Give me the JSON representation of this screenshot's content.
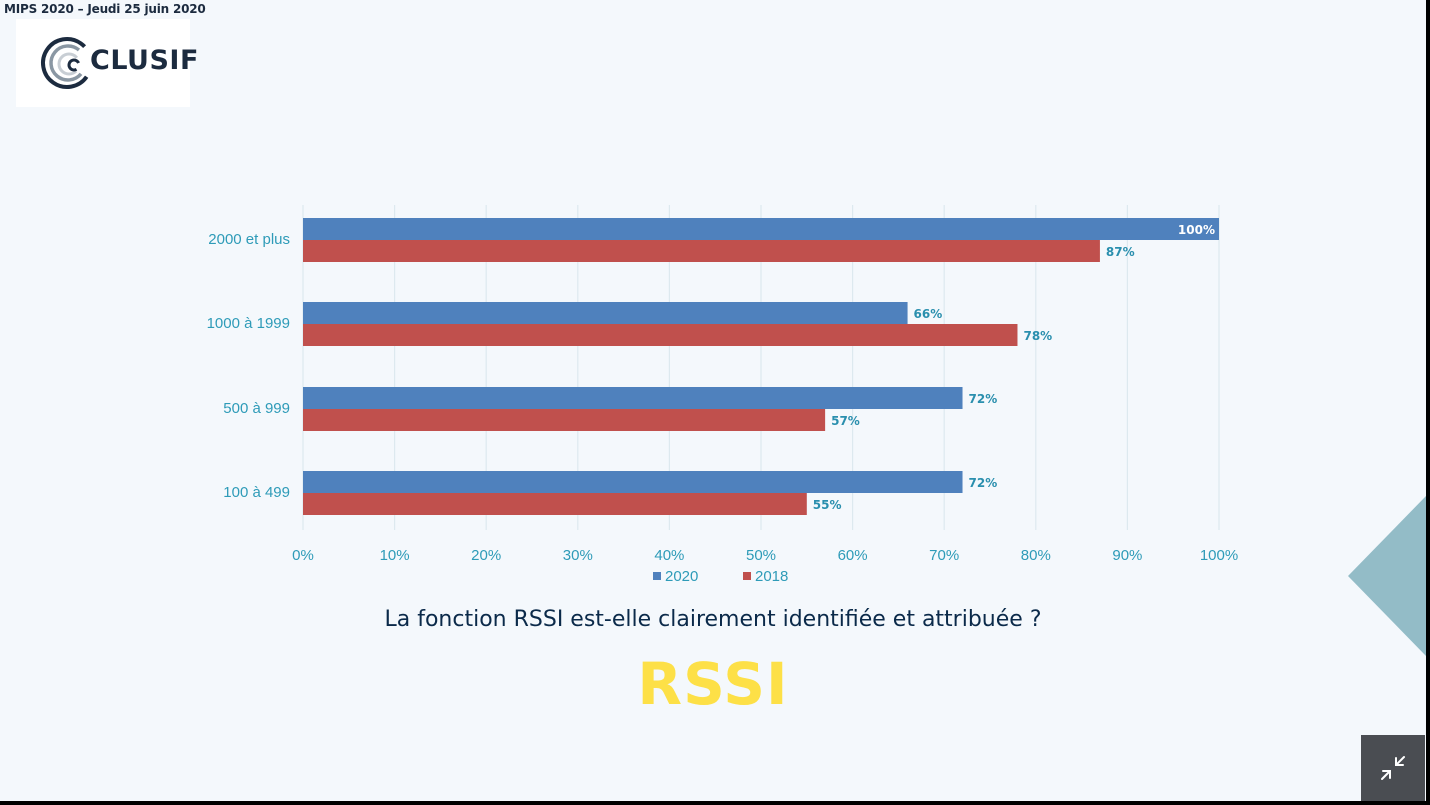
{
  "header": {
    "event": "MIPS 2020 – Jeudi  25 juin 2020"
  },
  "logo": {
    "text": "CLUSIF"
  },
  "question": "La fonction RSSI est-elle clairement identifiée et attribuée ?",
  "topic": "RSSI",
  "chart_data": {
    "type": "bar",
    "orientation": "horizontal",
    "categories": [
      "2000 et plus",
      "1000 à 1999",
      "500 à 999",
      "100 à 499"
    ],
    "series": [
      {
        "name": "2020",
        "color": "#4f81bd",
        "values": [
          100,
          66,
          72,
          72
        ],
        "labels": [
          "100%",
          "66%",
          "72%",
          "72%"
        ]
      },
      {
        "name": "2018",
        "color": "#c0504d",
        "values": [
          87,
          78,
          57,
          55
        ],
        "labels": [
          "87%",
          "78%",
          "57%",
          "55%"
        ]
      }
    ],
    "xlim": [
      0,
      100
    ],
    "xticks": [
      "0%",
      "10%",
      "20%",
      "30%",
      "40%",
      "50%",
      "60%",
      "70%",
      "80%",
      "90%",
      "100%"
    ],
    "legend": "bottom-center",
    "grid": true
  },
  "colors": {
    "tick_text": "#2e9bb8",
    "grid": "#dde9ef",
    "accent_shape": "#93bcc7"
  },
  "icons": {
    "exit_fullscreen": "exit-fullscreen-icon"
  }
}
